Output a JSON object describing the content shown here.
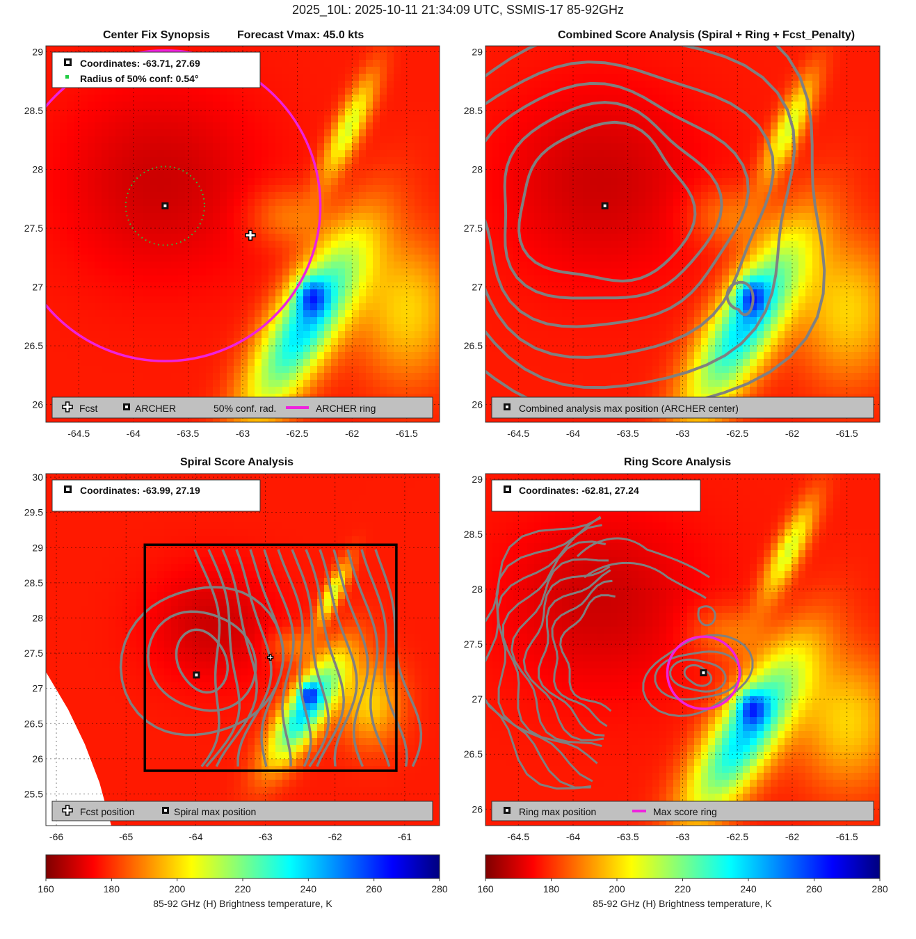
{
  "figure_title": "2025_10L: 2025-10-11 21:34:09 UTC, SSMIS-17 85-92GHz",
  "panels": {
    "synopsis": {
      "title_left": "Center Fix Synopsis",
      "title_right": "Forecast Vmax: 45.0 kts",
      "info_coords": "Coordinates: -63.71, 27.69",
      "info_radius": "Radius of 50% conf: 0.54°",
      "legend": {
        "fcst": "Fcst",
        "archer": "ARCHER",
        "conf": "50% conf. rad.",
        "ring": "ARCHER ring"
      }
    },
    "combined": {
      "title": "Combined Score Analysis (Spiral + Ring + Fcst_Penalty)",
      "legend": {
        "max": "Combined analysis max position (ARCHER center)"
      }
    },
    "spiral": {
      "title": "Spiral Score Analysis",
      "info_coords": "Coordinates: -63.99, 27.19",
      "legend": {
        "fcst": "Fcst position",
        "max": "Spiral max position"
      }
    },
    "ring": {
      "title": "Ring Score Analysis",
      "info_coords": "Coordinates: -62.81, 27.24",
      "legend": {
        "max": "Ring max position",
        "ring": "Max score ring"
      }
    }
  },
  "colorbars": [
    {
      "label": "85-92 GHz (H) Brightness temperature, K",
      "ticks": [
        "160",
        "180",
        "200",
        "220",
        "240",
        "260",
        "280"
      ],
      "range": [
        160,
        280
      ]
    },
    {
      "label": "85-92 GHz (H) Brightness temperature, K",
      "ticks": [
        "160",
        "180",
        "200",
        "220",
        "240",
        "260",
        "280"
      ],
      "range": [
        160,
        280
      ]
    }
  ],
  "colors": {
    "ring": "#ee22dd",
    "conf": "#22cc44",
    "contour": "#808080",
    "box": "#000000"
  },
  "chart_data": [
    {
      "type": "heatmap",
      "title": "Center Fix Synopsis    Forecast Vmax: 45.0 kts",
      "xlim": [
        -64.8,
        -61.2
      ],
      "ylim": [
        25.85,
        29.05
      ],
      "x_ticks": [
        "-64.5",
        "-64",
        "-63.5",
        "-63",
        "-62.5",
        "-62",
        "-61.5"
      ],
      "y_ticks": [
        "26",
        "26.5",
        "27",
        "27.5",
        "28",
        "28.5",
        "29"
      ],
      "archer_center": [
        -63.71,
        27.69
      ],
      "fcst_position": [
        -62.93,
        27.44
      ],
      "conf_radius_deg": 0.54,
      "archer_ring_radius_deg": 1.42
    },
    {
      "type": "heatmap",
      "title": "Combined Score Analysis (Spiral + Ring + Fcst_Penalty)",
      "xlim": [
        -64.8,
        -61.2
      ],
      "ylim": [
        25.85,
        29.05
      ],
      "x_ticks": [
        "-64.5",
        "-64",
        "-63.5",
        "-63",
        "-62.5",
        "-62",
        "-61.5"
      ],
      "y_ticks": [
        "26",
        "26.5",
        "27",
        "27.5",
        "28",
        "28.5",
        "29"
      ],
      "max_position": [
        -63.71,
        27.69
      ]
    },
    {
      "type": "heatmap",
      "title": "Spiral Score Analysis",
      "xlim": [
        -66.15,
        -60.5
      ],
      "ylim": [
        25.05,
        30.05
      ],
      "x_ticks": [
        "-66",
        "-65",
        "-64",
        "-63",
        "-62",
        "-61"
      ],
      "y_ticks": [
        "25.5",
        "26",
        "26.5",
        "27",
        "27.5",
        "28",
        "28.5",
        "29",
        "29.5",
        "30"
      ],
      "spiral_max": [
        -63.99,
        27.19
      ],
      "fcst_position": [
        -62.93,
        27.44
      ],
      "search_box": {
        "lon": [
          -64.73,
          -61.12
        ],
        "lat": [
          25.83,
          29.04
        ]
      }
    },
    {
      "type": "heatmap",
      "title": "Ring Score Analysis",
      "xlim": [
        -64.8,
        -61.2
      ],
      "ylim": [
        25.85,
        29.05
      ],
      "x_ticks": [
        "-64.5",
        "-64",
        "-63.5",
        "-63",
        "-62.5",
        "-62",
        "-61.5"
      ],
      "y_ticks": [
        "26",
        "26.5",
        "27",
        "27.5",
        "28",
        "28.5",
        "29"
      ],
      "ring_max": [
        -62.81,
        27.24
      ],
      "ring_radius_deg": 0.33
    }
  ]
}
